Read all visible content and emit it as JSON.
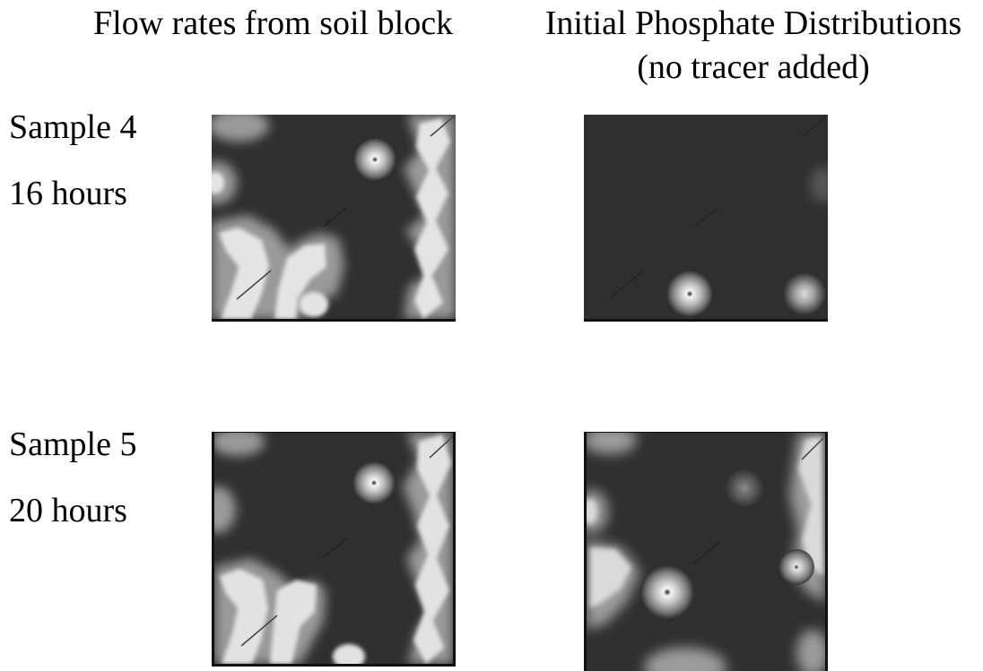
{
  "headers": {
    "flow_rates": "Flow rates from soil block",
    "phosphate_line1": "Initial Phosphate Distributions",
    "phosphate_line2": "(no tracer added)"
  },
  "rows": [
    {
      "sample": "Sample 4",
      "duration": "16 hours"
    },
    {
      "sample": "Sample 5",
      "duration": "20 hours"
    }
  ],
  "colors": {
    "panel_background": "#2f2f2f",
    "plume_light": "#e6e6e6",
    "text": "#000000"
  }
}
